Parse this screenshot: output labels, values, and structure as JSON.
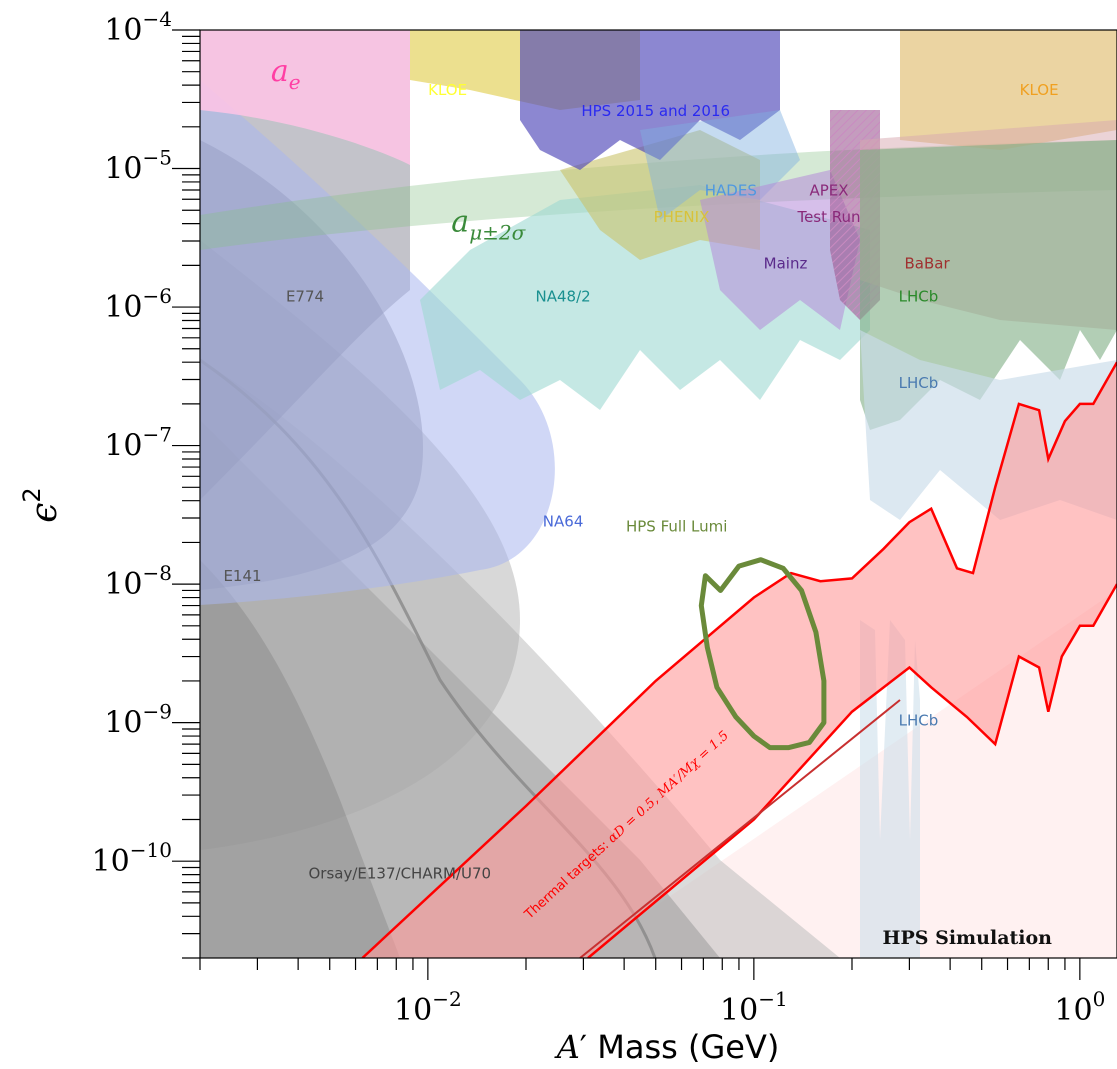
{
  "chart_data": {
    "type": "area",
    "title": "",
    "xlabel_prefix": "A",
    "xlabel_prime": "′",
    "xlabel_rest": " Mass (GeV)",
    "ylabel_base": "ϵ",
    "ylabel_exp": "2",
    "x_scale": "log",
    "y_scale": "log",
    "xlim": [
      0.002,
      1.3
    ],
    "ylim": [
      2e-11,
      0.0001
    ],
    "x_ticks": [
      {
        "value": 0.01,
        "base": "10",
        "exp": "−2"
      },
      {
        "value": 0.1,
        "base": "10",
        "exp": "−1"
      },
      {
        "value": 1,
        "base": "10",
        "exp": "0"
      }
    ],
    "y_ticks": [
      {
        "value": 0.0001,
        "base": "10",
        "exp": "−4"
      },
      {
        "value": 1e-05,
        "base": "10",
        "exp": "−5"
      },
      {
        "value": 1e-06,
        "base": "10",
        "exp": "−6"
      },
      {
        "value": 1e-07,
        "base": "10",
        "exp": "−7"
      },
      {
        "value": 1e-08,
        "base": "10",
        "exp": "−8"
      },
      {
        "value": 1e-09,
        "base": "10",
        "exp": "−9"
      },
      {
        "value": 1e-10,
        "base": "10",
        "exp": "−10"
      }
    ],
    "annotation": "HPS Simulation",
    "region_labels": [
      {
        "text": "KLOE",
        "x": 0.0115,
        "y": 3.4e-05,
        "color": "#ffff33"
      },
      {
        "text": "HPS 2015 and 2016",
        "x": 0.05,
        "y": 2.4e-05,
        "color": "#2a2af0"
      },
      {
        "text": "KLOE",
        "x": 0.75,
        "y": 3.4e-05,
        "color": "#f0a020"
      },
      {
        "text": "HADES",
        "x": 0.085,
        "y": 6.4e-06,
        "color": "#4f98e0"
      },
      {
        "text": "APEX",
        "x": 0.17,
        "y": 6.4e-06,
        "color": "#8a2a7a"
      },
      {
        "text": "PHENIX",
        "x": 0.06,
        "y": 4.1e-06,
        "color": "#d8c23a"
      },
      {
        "text": "Test Run",
        "x": 0.17,
        "y": 4.1e-06,
        "color": "#8a2a7a"
      },
      {
        "text": "Mainz",
        "x": 0.125,
        "y": 1.9e-06,
        "color": "#5a2a8a"
      },
      {
        "text": "BaBar",
        "x": 0.34,
        "y": 1.9e-06,
        "color": "#a03030"
      },
      {
        "text": "E774",
        "x": 0.0042,
        "y": 1.1e-06,
        "color": "#555555"
      },
      {
        "text": "NA48/2",
        "x": 0.026,
        "y": 1.1e-06,
        "color": "#1a9090"
      },
      {
        "text": "LHCb",
        "x": 0.32,
        "y": 1.1e-06,
        "color": "#2a8a2a"
      },
      {
        "text": "LHCb",
        "x": 0.32,
        "y": 2.6e-07,
        "color": "#4a7ab0"
      },
      {
        "text": "NA64",
        "x": 0.026,
        "y": 2.6e-08,
        "color": "#4a6ad8"
      },
      {
        "text": "HPS Full Lumi",
        "x": 0.058,
        "y": 2.4e-08,
        "color": "#6a8a3a"
      },
      {
        "text": "E141",
        "x": 0.0027,
        "y": 1.05e-08,
        "color": "#555555"
      },
      {
        "text": "LHCb",
        "x": 0.32,
        "y": 9.5e-10,
        "color": "#4a7ab0"
      },
      {
        "text": "Orsay/E137/CHARM/U70",
        "x": 0.0082,
        "y": 7.5e-11,
        "color": "#444444"
      }
    ],
    "math_labels": [
      {
        "base": "a",
        "sub": "e",
        "x": 0.0033,
        "y": 4.3e-05,
        "color": "#ff3fa4"
      },
      {
        "base": "a",
        "sub": "μ±2σ",
        "x": 0.0118,
        "y": 3.5e-06,
        "color": "#3a8a3a"
      }
    ],
    "thermal_label_prefix": "Thermal targets: ",
    "thermal_label_math": "αD = 0.5, MA′/Mχ = 1.5",
    "series": [
      {
        "name": "Thermal targets",
        "color": "#ff0000",
        "fill": "#ff9a9a",
        "lower": [
          [
            0.031,
            2e-11
          ],
          [
            0.1,
            2e-10
          ],
          [
            0.2,
            1.2e-09
          ],
          [
            0.3,
            2.5e-09
          ],
          [
            0.35,
            1.8e-09
          ],
          [
            0.45,
            1.1e-09
          ],
          [
            0.55,
            7e-10
          ],
          [
            0.65,
            3e-09
          ],
          [
            0.75,
            2.5e-09
          ],
          [
            0.8,
            1.2e-09
          ],
          [
            0.88,
            3e-09
          ],
          [
            1.0,
            5e-09
          ],
          [
            1.1,
            5e-09
          ],
          [
            1.3,
            1e-08
          ]
        ],
        "upper": [
          [
            0.0063,
            2e-11
          ],
          [
            0.02,
            2.5e-10
          ],
          [
            0.05,
            2e-09
          ],
          [
            0.1,
            8e-09
          ],
          [
            0.13,
            1.2e-08
          ],
          [
            0.16,
            1.05e-08
          ],
          [
            0.2,
            1.1e-08
          ],
          [
            0.25,
            1.8e-08
          ],
          [
            0.3,
            2.8e-08
          ],
          [
            0.35,
            3.5e-08
          ],
          [
            0.42,
            1.3e-08
          ],
          [
            0.47,
            1.2e-08
          ],
          [
            0.55,
            5e-08
          ],
          [
            0.65,
            2e-07
          ],
          [
            0.75,
            1.8e-07
          ],
          [
            0.8,
            8e-08
          ],
          [
            0.9,
            1.5e-07
          ],
          [
            1.0,
            2e-07
          ],
          [
            1.1,
            2e-07
          ],
          [
            1.3,
            4e-07
          ]
        ]
      },
      {
        "name": "HPS Full Lumi",
        "color": "#6a8a3a",
        "points": [
          [
            0.071,
            1.15e-08
          ],
          [
            0.079,
            9e-09
          ],
          [
            0.09,
            1.35e-08
          ],
          [
            0.105,
            1.5e-08
          ],
          [
            0.123,
            1.3e-08
          ],
          [
            0.14,
            9e-09
          ],
          [
            0.155,
            4.5e-09
          ],
          [
            0.164,
            2e-09
          ],
          [
            0.164,
            1e-09
          ],
          [
            0.148,
            7.2e-10
          ],
          [
            0.128,
            6.6e-10
          ],
          [
            0.112,
            6.6e-10
          ],
          [
            0.1,
            8e-10
          ],
          [
            0.088,
            1.1e-09
          ],
          [
            0.077,
            1.8e-09
          ],
          [
            0.072,
            3.5e-09
          ],
          [
            0.069,
            7e-09
          ]
        ]
      }
    ],
    "legend": "none",
    "grid": false
  }
}
